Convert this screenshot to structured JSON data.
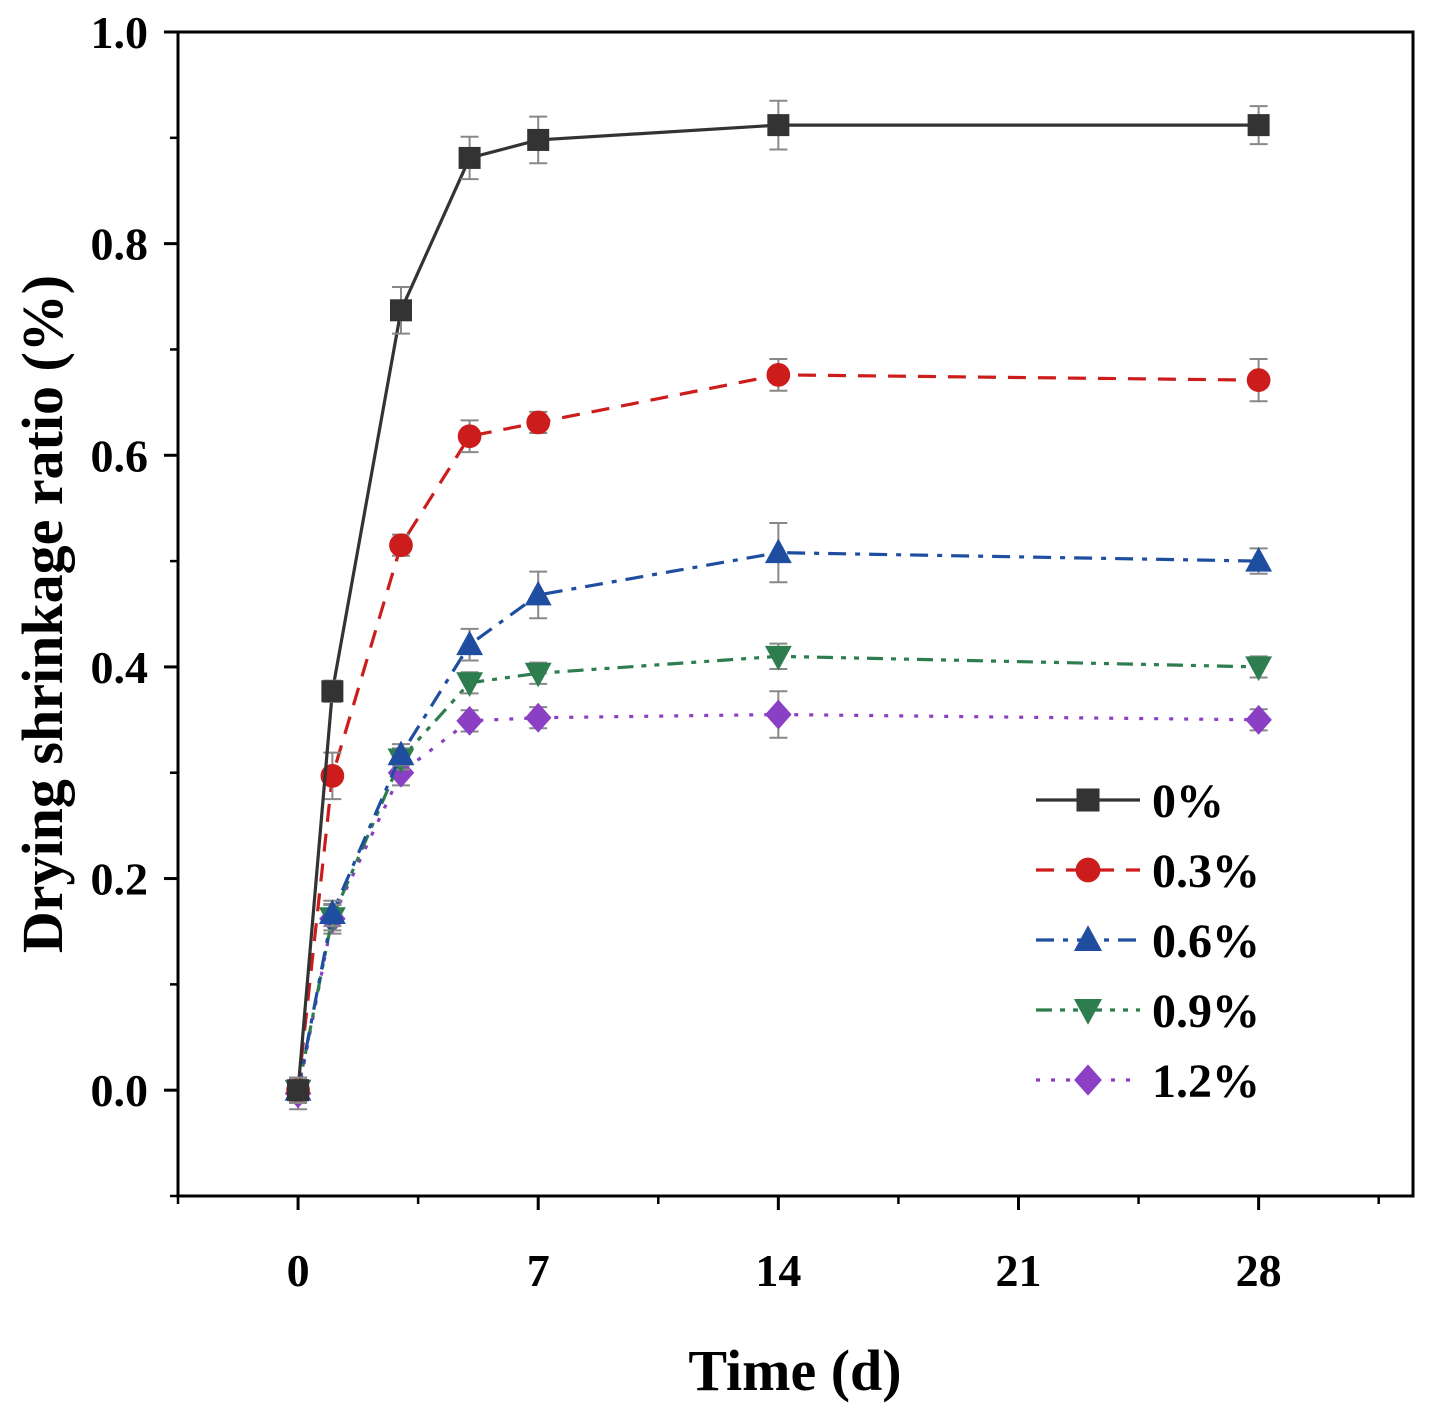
{
  "chart_data": {
    "type": "line",
    "title": "",
    "xlabel": "Time (d)",
    "ylabel": "Drying shrinkage ratio (%)",
    "xlim": [
      -3.5,
      32.5
    ],
    "ylim": [
      -0.1,
      1.0
    ],
    "xticks": [
      0,
      7,
      14,
      21,
      28
    ],
    "xtick_labels": [
      "0",
      "7",
      "14",
      "21",
      "28"
    ],
    "yticks": [
      0.0,
      0.2,
      0.4,
      0.6,
      0.8,
      1.0
    ],
    "ytick_labels": [
      "0.0",
      "0.2",
      "0.4",
      "0.6",
      "0.8",
      "1.0"
    ],
    "legend_position": "lower-right",
    "x": [
      0,
      1,
      3,
      5,
      7,
      14,
      28
    ],
    "series": [
      {
        "name": "0%",
        "marker": "square",
        "color": "#333333",
        "dash": "solid",
        "values": [
          0.0,
          0.377,
          0.737,
          0.881,
          0.898,
          0.912,
          0.912
        ],
        "errors": [
          0.012,
          0.01,
          0.022,
          0.02,
          0.022,
          0.023,
          0.018
        ]
      },
      {
        "name": "0.3%",
        "marker": "circle",
        "color": "#cc1c1c",
        "dash": "dashed",
        "values": [
          0.0,
          0.297,
          0.515,
          0.618,
          0.631,
          0.676,
          0.671
        ],
        "errors": [
          0.012,
          0.022,
          0.01,
          0.015,
          0.01,
          0.015,
          0.02
        ]
      },
      {
        "name": "0.6%",
        "marker": "triangle-up",
        "color": "#1f4ea1",
        "dash": "dashdot",
        "values": [
          0.0,
          0.167,
          0.317,
          0.421,
          0.468,
          0.508,
          0.5
        ],
        "errors": [
          0.01,
          0.012,
          0.01,
          0.015,
          0.022,
          0.028,
          0.012
        ]
      },
      {
        "name": "0.9%",
        "marker": "triangle-down",
        "color": "#2e7d4f",
        "dash": "dashdotdot",
        "values": [
          0.0,
          0.163,
          0.313,
          0.385,
          0.394,
          0.41,
          0.4
        ],
        "errors": [
          0.01,
          0.012,
          0.01,
          0.01,
          0.01,
          0.012,
          0.01
        ]
      },
      {
        "name": "1.2%",
        "marker": "diamond",
        "color": "#8a3fc4",
        "dash": "dotted",
        "values": [
          -0.003,
          0.162,
          0.3,
          0.349,
          0.352,
          0.355,
          0.35
        ],
        "errors": [
          0.015,
          0.014,
          0.012,
          0.01,
          0.01,
          0.022,
          0.01
        ]
      }
    ]
  }
}
